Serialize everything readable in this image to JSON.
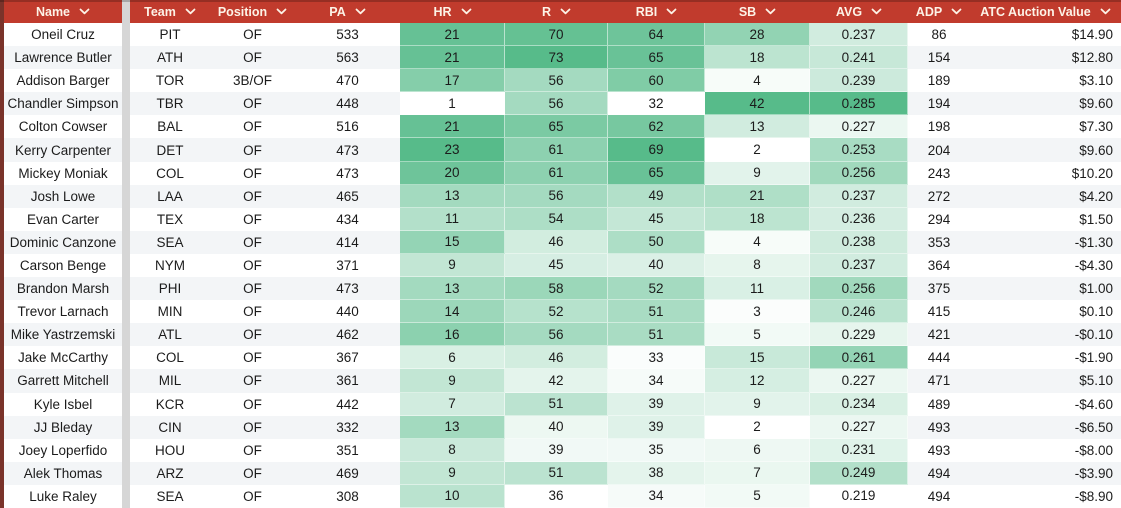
{
  "table": {
    "colors": {
      "header_bg": "#c13b2d",
      "header_text": "#fdf3e7",
      "heat_min": "#ffffff",
      "heat_max": "#57bb8a",
      "row_alt": "#f3f5f7",
      "left_stripe": "#7a332a",
      "divider": "#d6d6d6"
    },
    "columns": [
      {
        "key": "name",
        "label": "Name"
      },
      {
        "key": "team",
        "label": "Team"
      },
      {
        "key": "position",
        "label": "Position"
      },
      {
        "key": "pa",
        "label": "PA"
      },
      {
        "key": "hr",
        "label": "HR",
        "heat": true,
        "min": 1,
        "max": 23
      },
      {
        "key": "r",
        "label": "R",
        "heat": true,
        "min": 36,
        "max": 73
      },
      {
        "key": "rbi",
        "label": "RBI",
        "heat": true,
        "min": 32,
        "max": 69
      },
      {
        "key": "sb",
        "label": "SB",
        "heat": true,
        "min": 2,
        "max": 42
      },
      {
        "key": "avg",
        "label": "AVG",
        "heat": true,
        "min": 0.219,
        "max": 0.285
      },
      {
        "key": "adp",
        "label": "ADP"
      },
      {
        "key": "value",
        "label": "ATC Auction Value"
      }
    ],
    "rows": [
      {
        "name": "Oneil Cruz",
        "team": "PIT",
        "position": "OF",
        "pa": 533,
        "hr": 21,
        "r": 70,
        "rbi": 64,
        "sb": 28,
        "avg": "0.237",
        "adp": 86,
        "value": "$14.90"
      },
      {
        "name": "Lawrence Butler",
        "team": "ATH",
        "position": "OF",
        "pa": 563,
        "hr": 21,
        "r": 73,
        "rbi": 65,
        "sb": 18,
        "avg": "0.241",
        "adp": 154,
        "value": "$12.80"
      },
      {
        "name": "Addison Barger",
        "team": "TOR",
        "position": "3B/OF",
        "pa": 470,
        "hr": 17,
        "r": 56,
        "rbi": 60,
        "sb": 4,
        "avg": "0.239",
        "adp": 189,
        "value": "$3.10"
      },
      {
        "name": "Chandler Simpson",
        "team": "TBR",
        "position": "OF",
        "pa": 448,
        "hr": 1,
        "r": 56,
        "rbi": 32,
        "sb": 42,
        "avg": "0.285",
        "adp": 194,
        "value": "$9.60"
      },
      {
        "name": "Colton Cowser",
        "team": "BAL",
        "position": "OF",
        "pa": 516,
        "hr": 21,
        "r": 65,
        "rbi": 62,
        "sb": 13,
        "avg": "0.227",
        "adp": 198,
        "value": "$7.30"
      },
      {
        "name": "Kerry Carpenter",
        "team": "DET",
        "position": "OF",
        "pa": 473,
        "hr": 23,
        "r": 61,
        "rbi": 69,
        "sb": 2,
        "avg": "0.253",
        "adp": 204,
        "value": "$9.60"
      },
      {
        "name": "Mickey Moniak",
        "team": "COL",
        "position": "OF",
        "pa": 473,
        "hr": 20,
        "r": 61,
        "rbi": 65,
        "sb": 9,
        "avg": "0.256",
        "adp": 243,
        "value": "$10.20"
      },
      {
        "name": "Josh Lowe",
        "team": "LAA",
        "position": "OF",
        "pa": 465,
        "hr": 13,
        "r": 56,
        "rbi": 49,
        "sb": 21,
        "avg": "0.237",
        "adp": 272,
        "value": "$4.20"
      },
      {
        "name": "Evan Carter",
        "team": "TEX",
        "position": "OF",
        "pa": 434,
        "hr": 11,
        "r": 54,
        "rbi": 45,
        "sb": 18,
        "avg": "0.236",
        "adp": 294,
        "value": "$1.50"
      },
      {
        "name": "Dominic Canzone",
        "team": "SEA",
        "position": "OF",
        "pa": 414,
        "hr": 15,
        "r": 46,
        "rbi": 50,
        "sb": 4,
        "avg": "0.238",
        "adp": 353,
        "value": "-$1.30"
      },
      {
        "name": "Carson Benge",
        "team": "NYM",
        "position": "OF",
        "pa": 371,
        "hr": 9,
        "r": 45,
        "rbi": 40,
        "sb": 8,
        "avg": "0.237",
        "adp": 364,
        "value": "-$4.30"
      },
      {
        "name": "Brandon Marsh",
        "team": "PHI",
        "position": "OF",
        "pa": 473,
        "hr": 13,
        "r": 58,
        "rbi": 52,
        "sb": 11,
        "avg": "0.256",
        "adp": 375,
        "value": "$1.00"
      },
      {
        "name": "Trevor Larnach",
        "team": "MIN",
        "position": "OF",
        "pa": 440,
        "hr": 14,
        "r": 52,
        "rbi": 51,
        "sb": 3,
        "avg": "0.246",
        "adp": 415,
        "value": "$0.10"
      },
      {
        "name": "Mike Yastrzemski",
        "team": "ATL",
        "position": "OF",
        "pa": 462,
        "hr": 16,
        "r": 56,
        "rbi": 51,
        "sb": 5,
        "avg": "0.229",
        "adp": 421,
        "value": "-$0.10"
      },
      {
        "name": "Jake McCarthy",
        "team": "COL",
        "position": "OF",
        "pa": 367,
        "hr": 6,
        "r": 46,
        "rbi": 33,
        "sb": 15,
        "avg": "0.261",
        "adp": 444,
        "value": "-$1.90"
      },
      {
        "name": "Garrett Mitchell",
        "team": "MIL",
        "position": "OF",
        "pa": 361,
        "hr": 9,
        "r": 42,
        "rbi": 34,
        "sb": 12,
        "avg": "0.227",
        "adp": 471,
        "value": "$5.10"
      },
      {
        "name": "Kyle Isbel",
        "team": "KCR",
        "position": "OF",
        "pa": 442,
        "hr": 7,
        "r": 51,
        "rbi": 39,
        "sb": 9,
        "avg": "0.234",
        "adp": 489,
        "value": "-$4.60"
      },
      {
        "name": "JJ Bleday",
        "team": "CIN",
        "position": "OF",
        "pa": 332,
        "hr": 13,
        "r": 40,
        "rbi": 39,
        "sb": 2,
        "avg": "0.227",
        "adp": 493,
        "value": "-$6.50"
      },
      {
        "name": "Joey Loperfido",
        "team": "HOU",
        "position": "OF",
        "pa": 351,
        "hr": 8,
        "r": 39,
        "rbi": 35,
        "sb": 6,
        "avg": "0.231",
        "adp": 493,
        "value": "-$8.00"
      },
      {
        "name": "Alek Thomas",
        "team": "ARZ",
        "position": "OF",
        "pa": 469,
        "hr": 9,
        "r": 51,
        "rbi": 38,
        "sb": 7,
        "avg": "0.249",
        "adp": 494,
        "value": "-$3.90"
      },
      {
        "name": "Luke Raley",
        "team": "SEA",
        "position": "OF",
        "pa": 308,
        "hr": 10,
        "r": 36,
        "rbi": 34,
        "sb": 5,
        "avg": "0.219",
        "adp": 494,
        "value": "-$8.90"
      }
    ]
  }
}
